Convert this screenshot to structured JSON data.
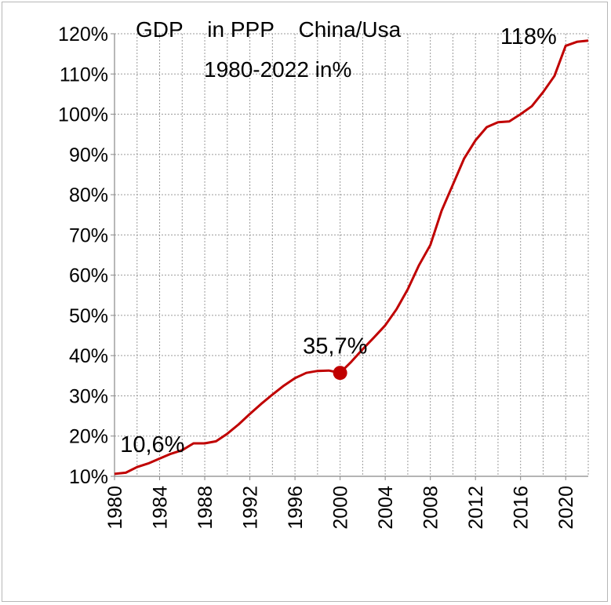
{
  "chart_data": {
    "type": "line",
    "title_lines": [
      "GDP    in PPP    China/Usa",
      "1980-2022 in%"
    ],
    "xlabel": "",
    "ylabel": "",
    "xlim": [
      1980,
      2022
    ],
    "ylim": [
      10,
      120
    ],
    "y_tick_labels": [
      "10%",
      "20%",
      "30%",
      "40%",
      "50%",
      "60%",
      "70%",
      "80%",
      "90%",
      "100%",
      "110%",
      "120%"
    ],
    "x_tick_labels": [
      "1980",
      "1984",
      "1988",
      "1992",
      "1996",
      "2000",
      "2004",
      "2008",
      "2012",
      "2016",
      "2020"
    ],
    "grid": true,
    "line_color": "#c00000",
    "series": [
      {
        "x": [
          1980,
          1981,
          1982,
          1983,
          1984,
          1985,
          1986,
          1987,
          1988,
          1989,
          1990,
          1991,
          1992,
          1993,
          1994,
          1995,
          1996,
          1997,
          1998,
          1999,
          2000,
          2001,
          2002,
          2003,
          2004,
          2005,
          2006,
          2007,
          2008,
          2009,
          2010,
          2011,
          2012,
          2013,
          2014,
          2015,
          2016,
          2017,
          2018,
          2019,
          2020,
          2021,
          2022
        ],
        "values": [
          10.6,
          10.9,
          12.3,
          13.2,
          14.4,
          15.6,
          16.5,
          18.2,
          18.2,
          18.7,
          20.6,
          22.9,
          25.5,
          28.0,
          30.3,
          32.5,
          34.4,
          35.7,
          36.2,
          36.3,
          35.7,
          38.5,
          41.6,
          44.5,
          47.5,
          51.5,
          56.5,
          62.5,
          67.5,
          76.0,
          82.5,
          89.0,
          93.5,
          96.8,
          98.0,
          98.2,
          100.0,
          102.0,
          105.5,
          109.5,
          117.0,
          118.0,
          118.3
        ]
      }
    ],
    "highlight_point": {
      "x": 2000,
      "y": 35.7
    },
    "annotations": [
      {
        "text": "10,6%",
        "x": 1980.5,
        "y": 16
      },
      {
        "text": "35,7%",
        "x": 1996.7,
        "y": 40.5
      },
      {
        "text": "118%",
        "x": 2014.2,
        "y": 117.5
      }
    ]
  }
}
